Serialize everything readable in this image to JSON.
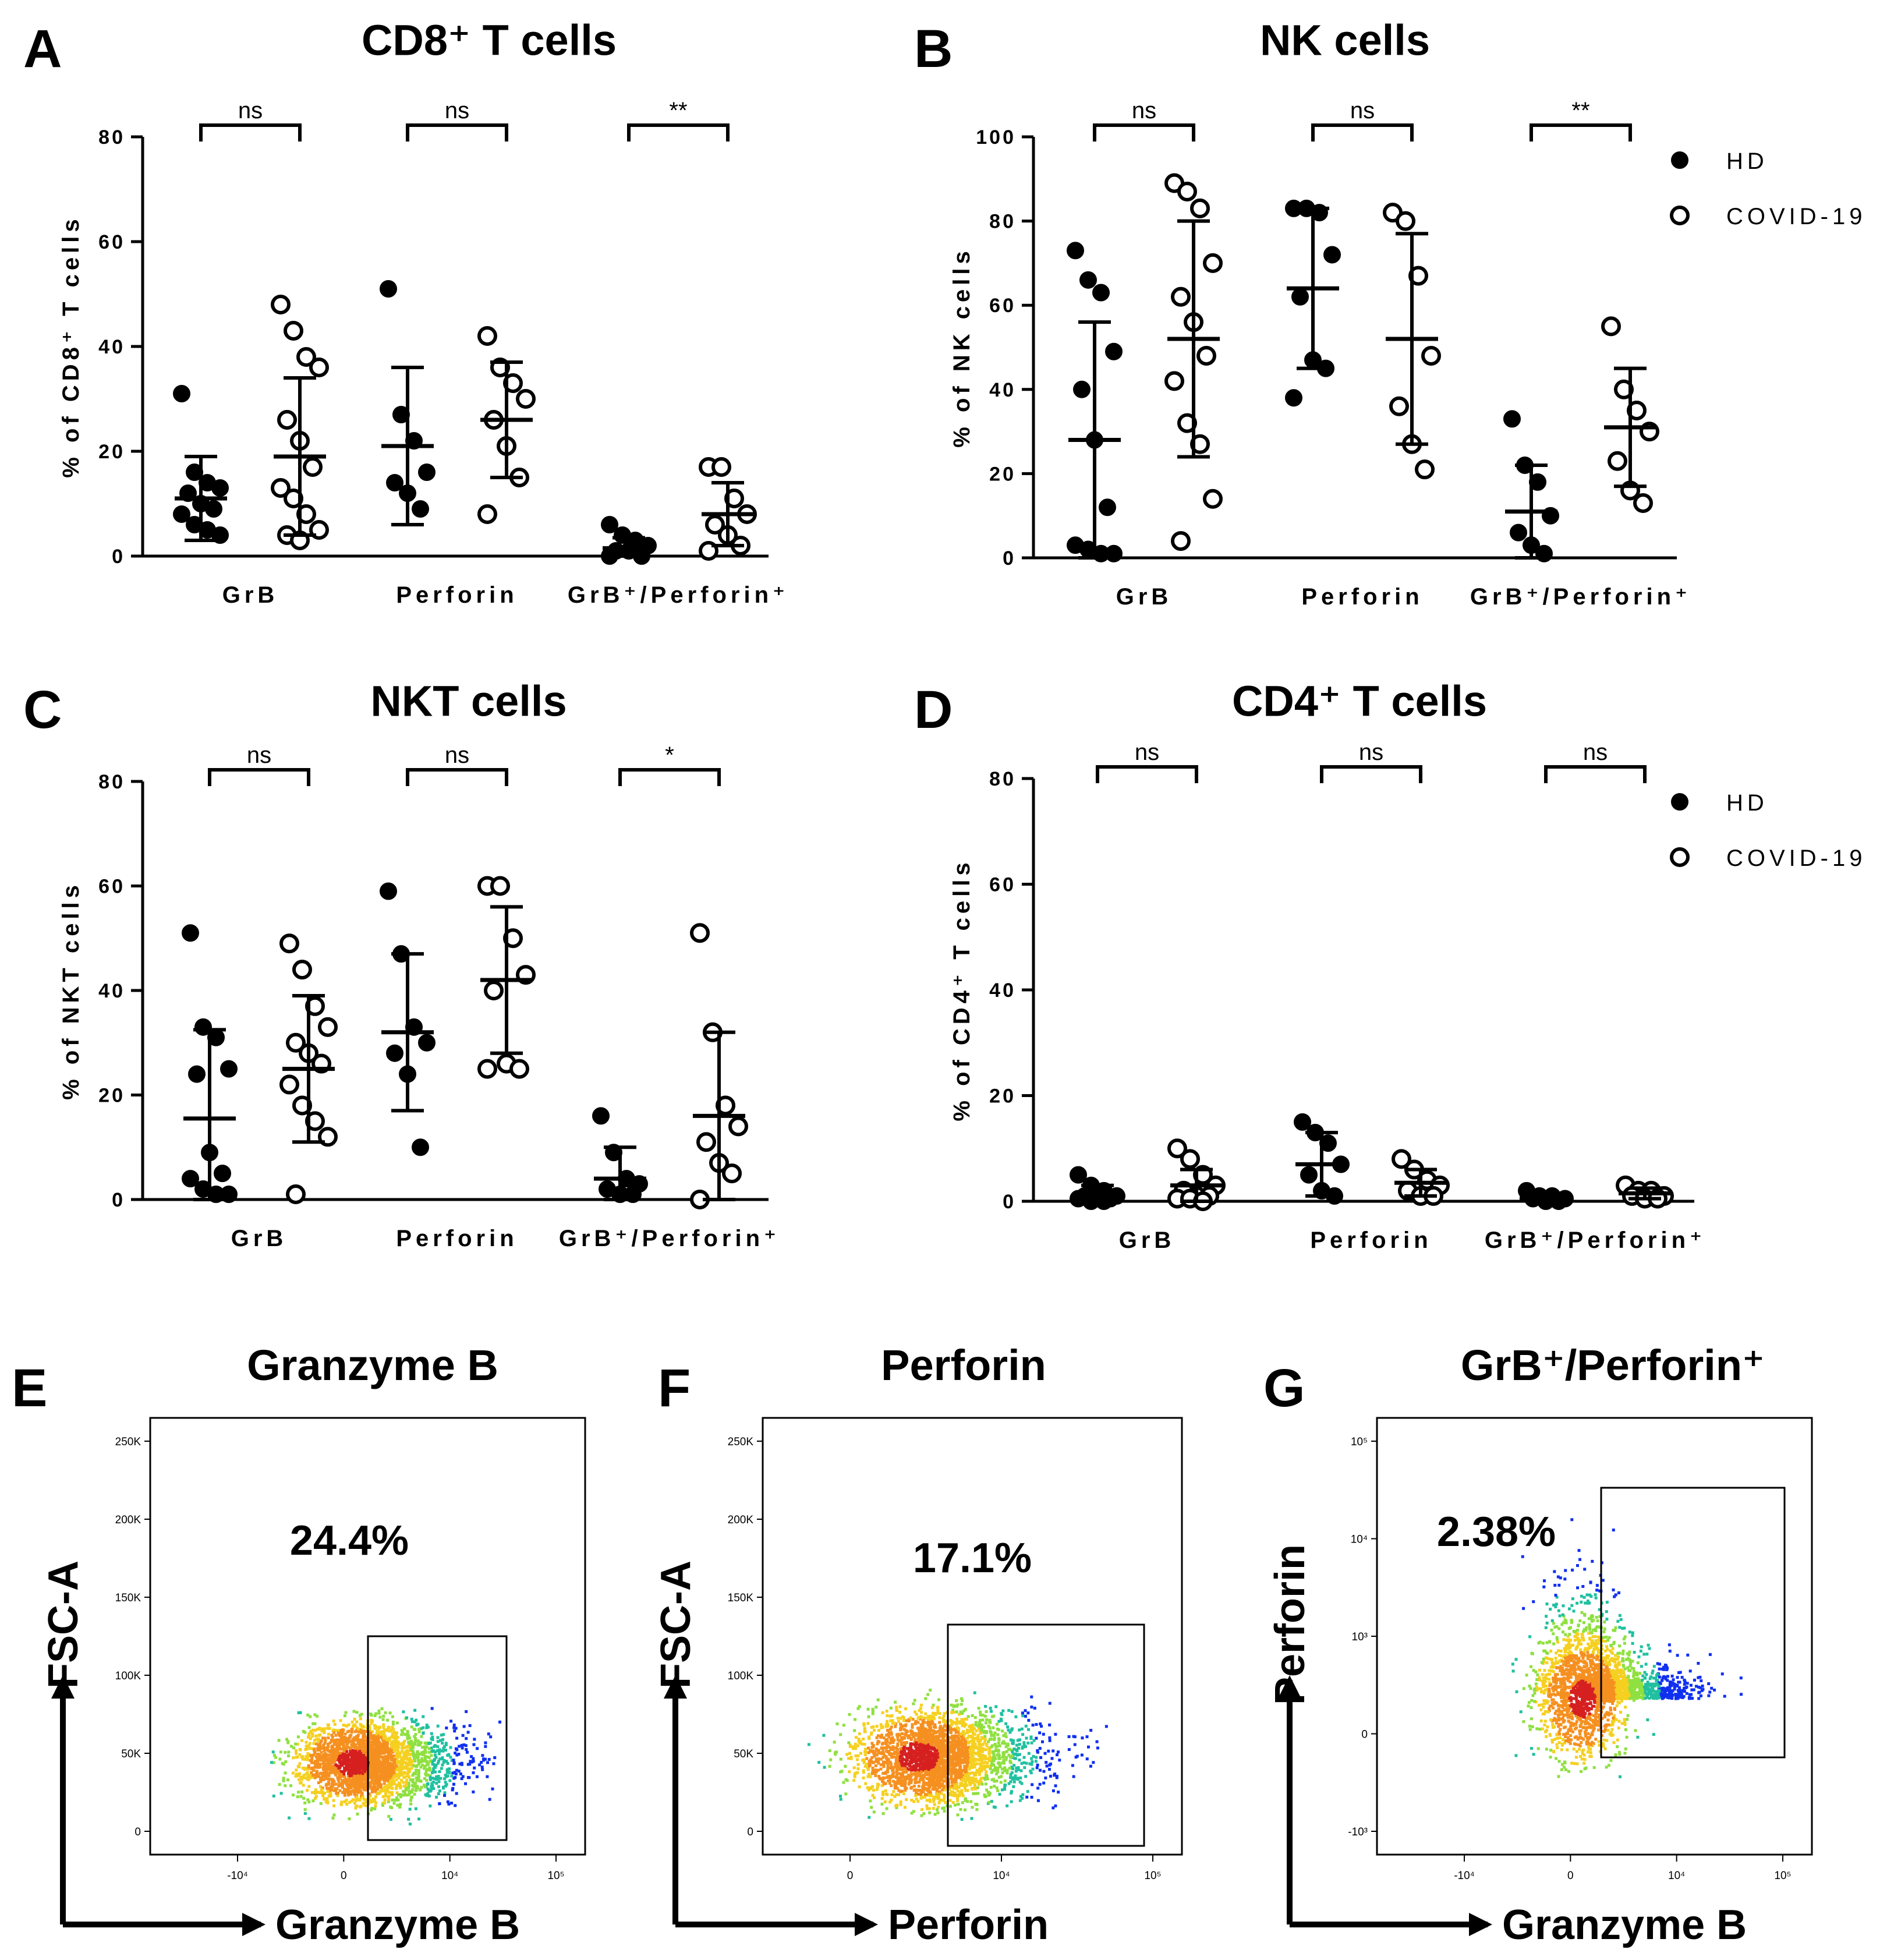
{
  "colors": {
    "ink": "#000000",
    "hd_fill": "#000000",
    "covid_fill": "#ffffff",
    "density_high": "#d62020",
    "density_mid": "#f5d020",
    "density_low": "#20c0a0",
    "density_sparse": "#1030f0"
  },
  "chart_data": [
    {
      "id": "A",
      "type": "scatter",
      "panel_letter": "A",
      "title": "CD8⁺ T cells",
      "ylabel": "% of CD8⁺ T cells",
      "ylim": [
        0,
        80
      ],
      "yticks": [
        "0",
        "20",
        "40",
        "60",
        "80"
      ],
      "legend": [],
      "categories": [
        "GrB",
        "Perforin",
        "GrB⁺/Perforin⁺"
      ],
      "significance": [
        "ns",
        "ns",
        "**"
      ],
      "series": [
        {
          "name": "HD",
          "marker": "filled",
          "groups": [
            {
              "values": [
                31,
                16,
                14,
                13,
                12,
                10,
                9,
                8,
                6,
                5,
                4
              ],
              "mean": 11,
              "sd": 8
            },
            {
              "values": [
                51,
                27,
                22,
                16,
                14,
                12,
                9
              ],
              "mean": 21,
              "sd": 15
            },
            {
              "values": [
                6,
                4,
                3,
                2,
                1,
                1,
                0,
                0
              ],
              "mean": 1.5,
              "sd": 2
            }
          ]
        },
        {
          "name": "COVID-19",
          "marker": "open",
          "groups": [
            {
              "values": [
                48,
                43,
                38,
                36,
                26,
                22,
                17,
                13,
                11,
                8,
                5,
                4,
                3
              ],
              "mean": 19,
              "sd": 15
            },
            {
              "values": [
                42,
                36,
                33,
                30,
                26,
                21,
                15,
                8
              ],
              "mean": 26,
              "sd": 11
            },
            {
              "values": [
                17,
                17,
                11,
                8,
                6,
                4,
                2,
                1
              ],
              "mean": 8,
              "sd": 6
            }
          ]
        }
      ]
    },
    {
      "id": "B",
      "type": "scatter",
      "panel_letter": "B",
      "title": "NK cells",
      "ylabel": "% of NK cells",
      "ylim": [
        0,
        100
      ],
      "yticks": [
        "0",
        "20",
        "40",
        "60",
        "80",
        "100"
      ],
      "legend": [
        "HD",
        "COVID-19"
      ],
      "categories": [
        "GrB",
        "Perforin",
        "GrB⁺/Perforin⁺"
      ],
      "significance": [
        "ns",
        "ns",
        "**"
      ],
      "series": [
        {
          "name": "HD",
          "marker": "filled",
          "groups": [
            {
              "values": [
                73,
                66,
                63,
                49,
                40,
                28,
                12,
                3,
                2,
                1,
                1
              ],
              "mean": 28,
              "sd": 28
            },
            {
              "values": [
                83,
                83,
                82,
                72,
                62,
                47,
                45,
                38
              ],
              "mean": 64,
              "sd": 19
            },
            {
              "values": [
                33,
                22,
                18,
                10,
                6,
                3,
                1
              ],
              "mean": 11,
              "sd": 11
            }
          ]
        },
        {
          "name": "COVID-19",
          "marker": "open",
          "groups": [
            {
              "values": [
                89,
                87,
                83,
                70,
                62,
                56,
                48,
                42,
                32,
                27,
                14,
                4
              ],
              "mean": 52,
              "sd": 28
            },
            {
              "values": [
                82,
                80,
                67,
                48,
                36,
                27,
                21
              ],
              "mean": 52,
              "sd": 25
            },
            {
              "values": [
                55,
                40,
                35,
                30,
                23,
                16,
                13
              ],
              "mean": 31,
              "sd": 14
            }
          ]
        }
      ]
    },
    {
      "id": "C",
      "type": "scatter",
      "panel_letter": "C",
      "title": "NKT cells",
      "ylabel": "% of NKT cells",
      "ylim": [
        0,
        80
      ],
      "yticks": [
        "0",
        "20",
        "40",
        "60",
        "80"
      ],
      "legend": [],
      "categories": [
        "GrB",
        "Perforin",
        "GrB⁺/Perforin⁺"
      ],
      "significance": [
        "ns",
        "ns",
        "*"
      ],
      "series": [
        {
          "name": "HD",
          "marker": "filled",
          "groups": [
            {
              "values": [
                51,
                33,
                31,
                25,
                24,
                9,
                5,
                4,
                2,
                1,
                1
              ],
              "mean": 15.5,
              "sd": 17
            },
            {
              "values": [
                59,
                47,
                33,
                30,
                28,
                24,
                10
              ],
              "mean": 32,
              "sd": 15
            },
            {
              "values": [
                16,
                9,
                4,
                3,
                2,
                1,
                1
              ],
              "mean": 4,
              "sd": 6
            }
          ]
        },
        {
          "name": "COVID-19",
          "marker": "open",
          "groups": [
            {
              "values": [
                49,
                44,
                37,
                33,
                30,
                28,
                26,
                22,
                18,
                15,
                12,
                1
              ],
              "mean": 25,
              "sd": 14
            },
            {
              "values": [
                60,
                60,
                50,
                43,
                40,
                26,
                25,
                25
              ],
              "mean": 42,
              "sd": 14
            },
            {
              "values": [
                51,
                32,
                18,
                14,
                11,
                7,
                5,
                0
              ],
              "mean": 16,
              "sd": 16
            }
          ]
        }
      ]
    },
    {
      "id": "D",
      "type": "scatter",
      "panel_letter": "D",
      "title": "CD4⁺ T cells",
      "ylabel": "% of CD4⁺ T cells",
      "ylim": [
        0,
        80
      ],
      "yticks": [
        "0",
        "20",
        "40",
        "60",
        "80"
      ],
      "legend": [
        "HD",
        "COVID-19"
      ],
      "categories": [
        "GrB",
        "Perforin",
        "GrB⁺/Perforin⁺"
      ],
      "significance": [
        "ns",
        "ns",
        "ns"
      ],
      "series": [
        {
          "name": "HD",
          "marker": "filled",
          "groups": [
            {
              "values": [
                5,
                3,
                2,
                1,
                1,
                1,
                0.5,
                0.5,
                0,
                0
              ],
              "mean": 1,
              "sd": 2
            },
            {
              "values": [
                15,
                13,
                11,
                7,
                5,
                2,
                1
              ],
              "mean": 7,
              "sd": 6
            },
            {
              "values": [
                2,
                1,
                1,
                0.5,
                0.5,
                0,
                0
              ],
              "mean": 0.5,
              "sd": 0.8
            }
          ]
        },
        {
          "name": "COVID-19",
          "marker": "open",
          "groups": [
            {
              "values": [
                10,
                8,
                5,
                3,
                2,
                1,
                1,
                0.5,
                0.5,
                0
              ],
              "mean": 3,
              "sd": 3
            },
            {
              "values": [
                8,
                6,
                4,
                3,
                2,
                1,
                1
              ],
              "mean": 3.5,
              "sd": 2.5
            },
            {
              "values": [
                3,
                2,
                2,
                1,
                1,
                0.5,
                0.5
              ],
              "mean": 1.5,
              "sd": 1
            }
          ]
        }
      ]
    }
  ],
  "facs": [
    {
      "panel_letter": "E",
      "title": "Granzyme B",
      "percent": "24.4%",
      "x_axis_label": "Granzyme B",
      "y_axis_label": "FSC-A",
      "y_ticks": [
        "250K",
        "200K",
        "150K",
        "100K",
        "50K",
        "0"
      ],
      "x_ticks": [
        "-10⁴",
        "0",
        "10⁴",
        "10⁵"
      ],
      "gate_fraction": 0.244
    },
    {
      "panel_letter": "F",
      "title": "Perforin",
      "percent": "17.1%",
      "x_axis_label": "Perforin",
      "y_axis_label": "FSC-A",
      "y_ticks": [
        "250K",
        "200K",
        "150K",
        "100K",
        "50K",
        "0"
      ],
      "x_ticks": [
        "0",
        "10⁴",
        "10⁵"
      ],
      "gate_fraction": 0.171
    },
    {
      "panel_letter": "G",
      "title": "GrB⁺/Perforin⁺",
      "percent": "2.38%",
      "x_axis_label": "Granzyme B",
      "y_axis_label": "Perforin",
      "y_ticks": [
        "10⁵",
        "10⁴",
        "10³",
        "0",
        "-10³"
      ],
      "x_ticks": [
        "-10⁴",
        "0",
        "10⁴",
        "10⁵"
      ],
      "gate_fraction": 0.0238
    }
  ]
}
